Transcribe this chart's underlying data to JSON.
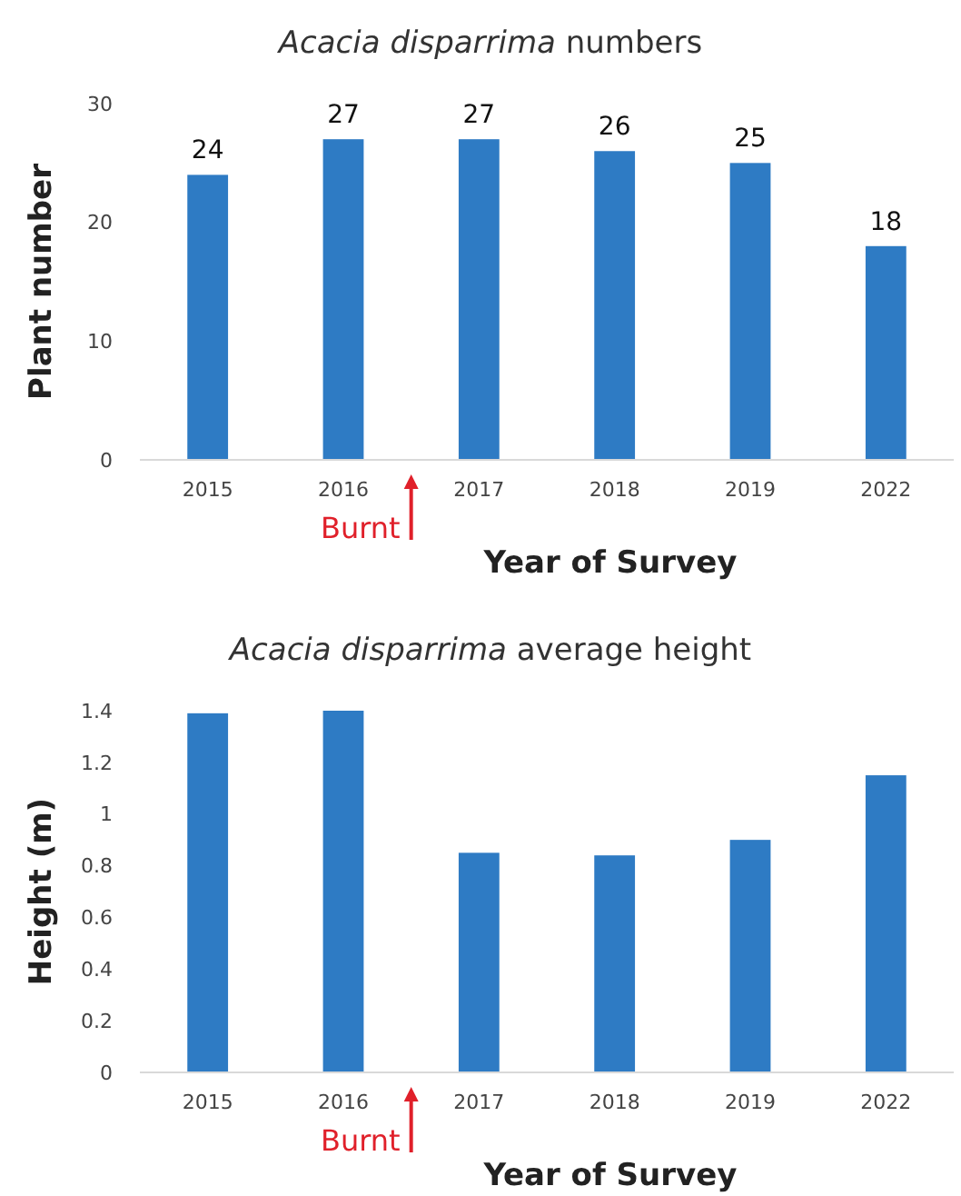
{
  "chart_data": [
    {
      "type": "bar",
      "title": "Acacia disparrima numbers",
      "xlabel": "Year of Survey",
      "ylabel": "Plant number",
      "categories": [
        "2015",
        "2016",
        "2017",
        "2018",
        "2019",
        "2022"
      ],
      "values": [
        24,
        27,
        27,
        26,
        25,
        18
      ],
      "color": "#2e7bc4",
      "ylim": [
        0,
        30
      ],
      "yticks": [
        0,
        10,
        20,
        30
      ],
      "data_labels": true,
      "grid": false,
      "annotations": [
        "Burnt"
      ]
    },
    {
      "type": "bar",
      "title": "Acacia disparrima average height",
      "xlabel": "Year of Survey",
      "ylabel": "Height (m)",
      "categories": [
        "2015",
        "2016",
        "2017",
        "2018",
        "2019",
        "2022"
      ],
      "values": [
        1.39,
        1.4,
        0.85,
        0.84,
        0.9,
        1.15
      ],
      "color": "#2e7bc4",
      "ylim": [
        0,
        1.4
      ],
      "yticks": [
        0,
        0.2,
        0.4,
        0.6,
        0.8,
        1,
        1.2,
        1.4
      ],
      "grid": false,
      "annotations": [
        "Burnt"
      ]
    }
  ]
}
